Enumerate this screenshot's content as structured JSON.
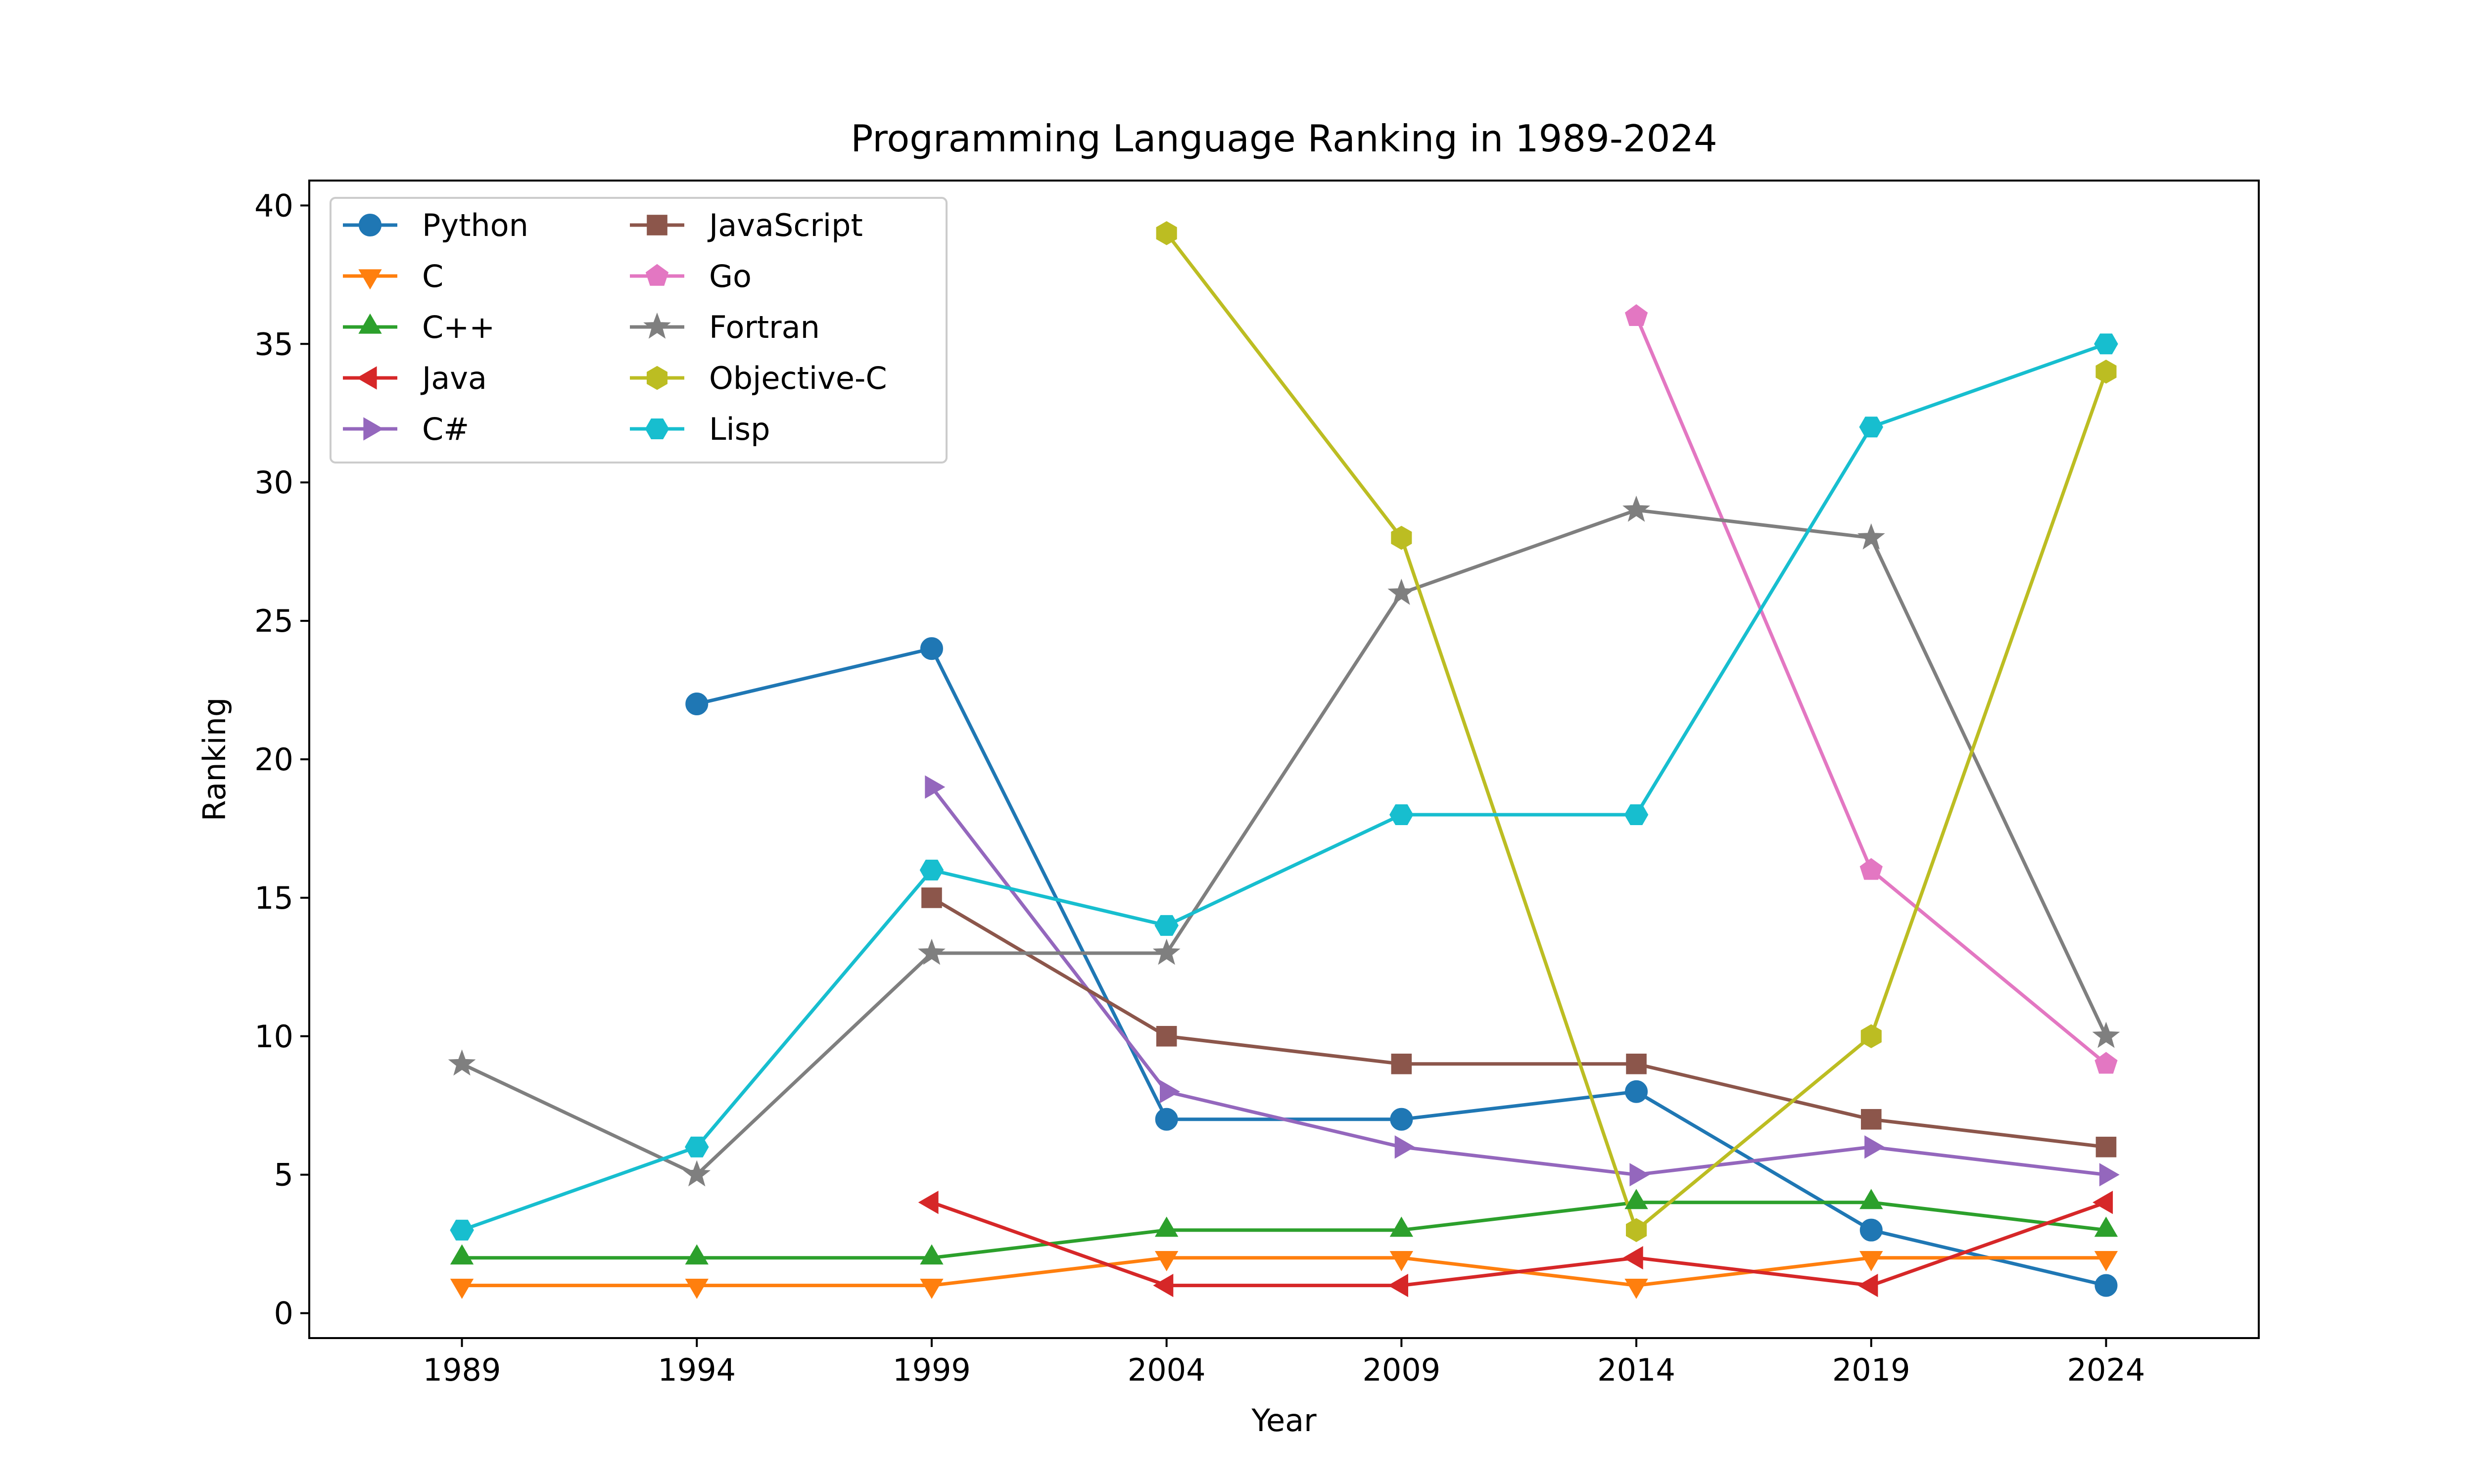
{
  "chart_data": {
    "type": "line",
    "title": "Programming Language Ranking in 1989-2024",
    "xlabel": "Year",
    "ylabel": "Ranking",
    "x": [
      1989,
      1994,
      1999,
      2004,
      2009,
      2014,
      2019,
      2024
    ],
    "xlim": [
      1985.75,
      2027.25
    ],
    "ylim": [
      -0.9,
      40.9
    ],
    "yticks": [
      0,
      5,
      10,
      15,
      20,
      25,
      30,
      35,
      40
    ],
    "grid": false,
    "legend": {
      "position": "top-left",
      "columns": 2
    },
    "series": [
      {
        "name": "Python",
        "color": "#1f77b4",
        "marker": "circle",
        "values": [
          null,
          22,
          24,
          7,
          7,
          8,
          3,
          1
        ]
      },
      {
        "name": "C",
        "color": "#ff7f0e",
        "marker": "triangle-down",
        "values": [
          1,
          1,
          1,
          2,
          2,
          1,
          2,
          2
        ]
      },
      {
        "name": "C++",
        "color": "#2ca02c",
        "marker": "triangle-up",
        "values": [
          2,
          2,
          2,
          3,
          3,
          4,
          4,
          3
        ]
      },
      {
        "name": "Java",
        "color": "#d62728",
        "marker": "triangle-left",
        "values": [
          null,
          null,
          4,
          1,
          1,
          2,
          1,
          4
        ]
      },
      {
        "name": "C#",
        "color": "#9467bd",
        "marker": "triangle-right",
        "values": [
          null,
          null,
          19,
          8,
          6,
          5,
          6,
          5
        ]
      },
      {
        "name": "JavaScript",
        "color": "#8c564b",
        "marker": "square",
        "values": [
          null,
          null,
          15,
          10,
          9,
          9,
          7,
          6
        ]
      },
      {
        "name": "Go",
        "color": "#e377c2",
        "marker": "pentagon",
        "values": [
          null,
          null,
          null,
          null,
          null,
          36,
          16,
          9
        ]
      },
      {
        "name": "Fortran",
        "color": "#7f7f7f",
        "marker": "star",
        "values": [
          9,
          5,
          13,
          13,
          26,
          29,
          28,
          10
        ]
      },
      {
        "name": "Objective-C",
        "color": "#bcbd22",
        "marker": "hexagon",
        "values": [
          null,
          null,
          null,
          39,
          28,
          3,
          10,
          34
        ]
      },
      {
        "name": "Lisp",
        "color": "#17becf",
        "marker": "hexagon-flat",
        "values": [
          3,
          6,
          16,
          14,
          18,
          18,
          32,
          35
        ]
      }
    ]
  }
}
